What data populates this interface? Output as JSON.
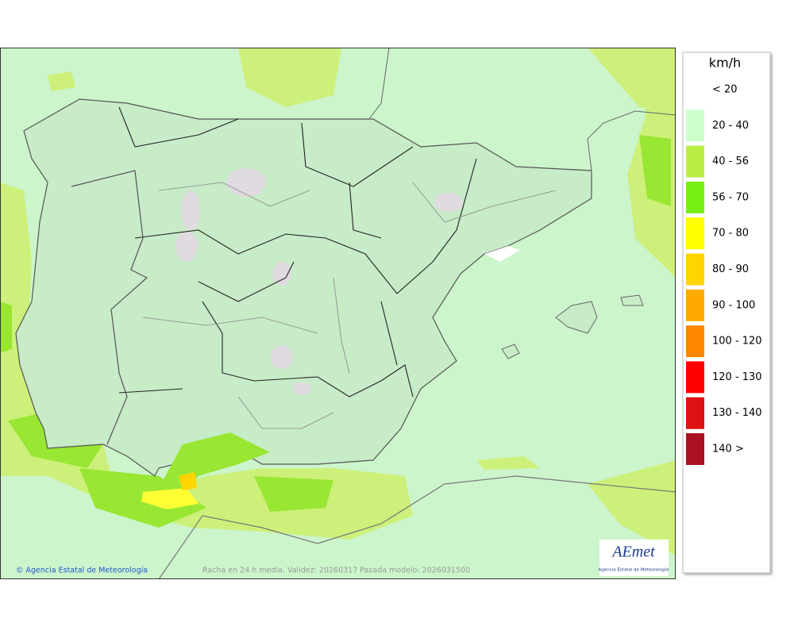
{
  "legend": {
    "title": "km/h",
    "items": [
      {
        "label": "< 20",
        "color": "#ffffff"
      },
      {
        "label": "20 - 40",
        "color": "#ccffcc"
      },
      {
        "label": "40 - 56",
        "color": "#bbee44"
      },
      {
        "label": "56 - 70",
        "color": "#77ee11"
      },
      {
        "label": "70 - 80",
        "color": "#ffff00"
      },
      {
        "label": "80 - 90",
        "color": "#ffd400"
      },
      {
        "label": "90 - 100",
        "color": "#ffaa00"
      },
      {
        "label": "100 - 120",
        "color": "#ff8800"
      },
      {
        "label": "120 - 130",
        "color": "#ff0000"
      },
      {
        "label": "130 - 140",
        "color": "#dd1111"
      },
      {
        "label": "140 >",
        "color": "#aa1122"
      }
    ]
  },
  "footer": {
    "credit": "© Agencia Estatal de Meteorología",
    "caption": "Racha en 24 h media. Validez: 20260317 Pasada modelo: 2026031500"
  },
  "logo": {
    "name": "AEmet",
    "subtitle": "Agencia Estatal de Meteorología"
  }
}
